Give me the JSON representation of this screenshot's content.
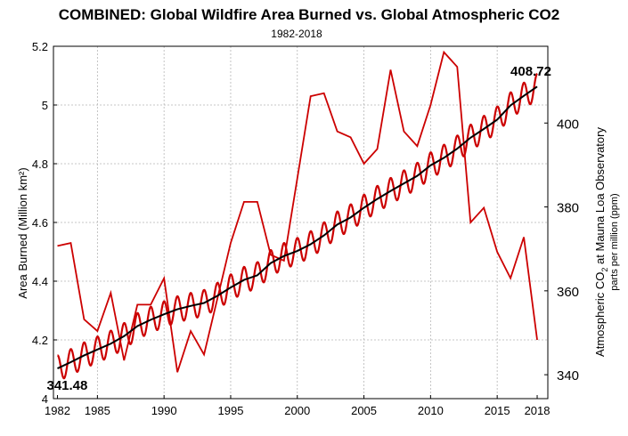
{
  "chart_data": {
    "type": "line",
    "title": "COMBINED: Global Wildfire Area Burned vs. Global Atmospheric CO2",
    "subtitle": "1982-2018",
    "ylabel": "Area Burned (Million km²)",
    "y2label_line1_pre": "Atmospheric CO",
    "y2label_line1_sub": "2",
    "y2label_line1_post": " at Mauna Loa Observatory",
    "y2label_line2": "parts per million (ppm)",
    "xlim": [
      1981.7,
      2018.8
    ],
    "ylim": [
      4.0,
      5.2
    ],
    "y2lim": [
      334.3,
      418.3
    ],
    "x_ticks": [
      1982,
      1985,
      1990,
      1995,
      2000,
      2005,
      2010,
      2015,
      2018
    ],
    "y_ticks": [
      4,
      4.2,
      4.4,
      4.6,
      4.8,
      5,
      5.2
    ],
    "y_tick_labels": [
      "4",
      "4.2",
      "4.4",
      "4.6",
      "4.8",
      "5",
      "5.2"
    ],
    "y2_ticks": [
      340,
      360,
      380,
      400
    ],
    "grid": true,
    "series": [
      {
        "axis": "left",
        "color": "#cc0000",
        "x": [
          1982,
          1983,
          1984,
          1985,
          1986,
          1987,
          1988,
          1989,
          1990,
          1991,
          1992,
          1993,
          1994,
          1995,
          1996,
          1997,
          1998,
          1999,
          2000,
          2001,
          2002,
          2003,
          2004,
          2005,
          2006,
          2007,
          2008,
          2009,
          2010,
          2011,
          2012,
          2013,
          2014,
          2015,
          2016,
          2017,
          2018
        ],
        "values": [
          4.52,
          4.53,
          4.27,
          4.23,
          4.36,
          4.13,
          4.32,
          4.32,
          4.41,
          4.09,
          4.23,
          4.15,
          4.34,
          4.53,
          4.67,
          4.67,
          4.49,
          4.47,
          4.75,
          5.03,
          5.04,
          4.91,
          4.89,
          4.8,
          4.85,
          5.12,
          4.91,
          4.86,
          5.0,
          5.18,
          5.13,
          4.6,
          4.65,
          4.5,
          4.41,
          4.55,
          4.2
        ]
      },
      {
        "axis": "right",
        "color": "#cc0000",
        "style": "seasonal",
        "x": [
          1982,
          1983,
          1984,
          1985,
          1986,
          1987,
          1988,
          1989,
          1990,
          1991,
          1992,
          1993,
          1994,
          1995,
          1996,
          1997,
          1998,
          1999,
          2000,
          2001,
          2002,
          2003,
          2004,
          2005,
          2006,
          2007,
          2008,
          2009,
          2010,
          2011,
          2012,
          2013,
          2014,
          2015,
          2016,
          2017,
          2018
        ],
        "values": [
          341.5,
          343.0,
          344.6,
          346.0,
          347.4,
          349.2,
          351.6,
          353.1,
          354.4,
          355.6,
          356.4,
          357.1,
          358.8,
          360.8,
          362.6,
          363.7,
          366.6,
          368.3,
          369.5,
          371.1,
          373.2,
          375.8,
          377.5,
          379.8,
          381.9,
          383.8,
          385.6,
          387.4,
          389.9,
          391.7,
          393.9,
          396.5,
          398.6,
          400.8,
          404.2,
          406.5,
          408.7
        ],
        "seasonal_amplitude": 3.1
      },
      {
        "axis": "right",
        "color": "#000000",
        "style": "trend",
        "x": [
          1982,
          1983,
          1984,
          1985,
          1986,
          1987,
          1988,
          1989,
          1990,
          1991,
          1992,
          1993,
          1994,
          1995,
          1996,
          1997,
          1998,
          1999,
          2000,
          2001,
          2002,
          2003,
          2004,
          2005,
          2006,
          2007,
          2008,
          2009,
          2010,
          2011,
          2012,
          2013,
          2014,
          2015,
          2016,
          2017,
          2018
        ],
        "values": [
          341.5,
          343.0,
          344.6,
          346.0,
          347.4,
          349.2,
          351.6,
          353.1,
          354.4,
          355.6,
          356.4,
          357.1,
          358.8,
          360.8,
          362.6,
          363.7,
          366.6,
          368.3,
          369.5,
          371.1,
          373.2,
          375.8,
          377.5,
          379.8,
          381.9,
          383.8,
          385.6,
          387.4,
          389.9,
          391.7,
          393.9,
          396.5,
          398.6,
          400.8,
          404.2,
          406.5,
          408.7
        ]
      }
    ],
    "annotations": [
      {
        "text": "341.48",
        "x": 1982,
        "y2": 341.48,
        "position": "below-right"
      },
      {
        "text": "408.72",
        "x": 2018,
        "y2": 408.72,
        "position": "above-left"
      }
    ]
  }
}
